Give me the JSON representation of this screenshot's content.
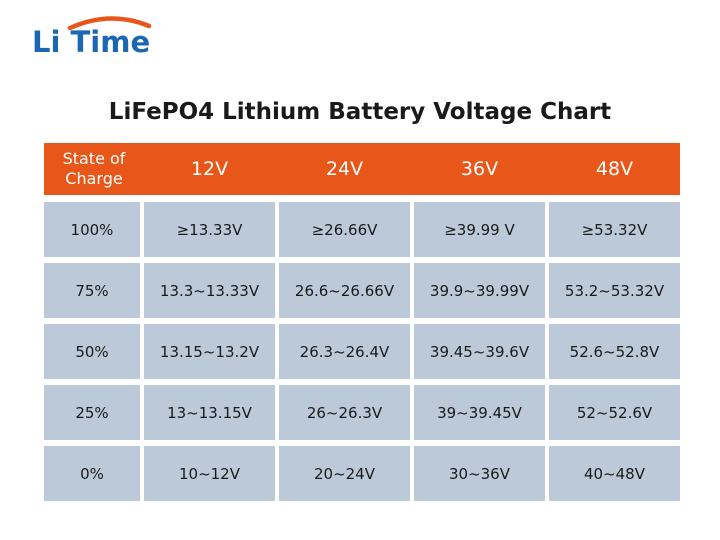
{
  "logo": {
    "text": "Li Time",
    "arc_color": "#e8561a",
    "text_color": "#1b67b3"
  },
  "title": "LiFePO4 Lithium Battery Voltage Chart",
  "colors": {
    "header_bg": "#e8561a",
    "cell_bg": "#bcc9d9"
  },
  "chart_data": {
    "type": "table",
    "title": "LiFePO4 Lithium Battery Voltage Chart",
    "columns": [
      "State of\nCharge",
      "12V",
      "24V",
      "36V",
      "48V"
    ],
    "rows": [
      [
        "100%",
        "≥13.33V",
        "≥26.66V",
        "≥39.99 V",
        "≥53.32V"
      ],
      [
        "75%",
        "13.3~13.33V",
        "26.6~26.66V",
        "39.9~39.99V",
        "53.2~53.32V"
      ],
      [
        "50%",
        "13.15~13.2V",
        "26.3~26.4V",
        "39.45~39.6V",
        "52.6~52.8V"
      ],
      [
        "25%",
        "13~13.15V",
        "26~26.3V",
        "39~39.45V",
        "52~52.6V"
      ],
      [
        "0%",
        "10~12V",
        "20~24V",
        "30~36V",
        "40~48V"
      ]
    ]
  }
}
